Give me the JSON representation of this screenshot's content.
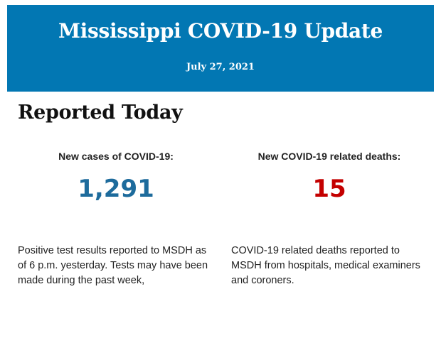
{
  "header": {
    "title": "Mississippi COVID-19 Update",
    "date": "July 27, 2021",
    "background_color": "#0277b3"
  },
  "section": {
    "heading": "Reported Today"
  },
  "cases": {
    "label": "New cases of COVID-19:",
    "value": "1,291",
    "color": "#1d6b9c",
    "description": "Positive test results reported to MSDH as of 6 p.m. yesterday. Tests may have been made during the past week,"
  },
  "deaths": {
    "label": "New COVID-19 related deaths:",
    "value": "15",
    "color": "#c40000",
    "description": "COVID-19 related deaths reported to MSDH from hospitals, medical examiners and coroners."
  }
}
